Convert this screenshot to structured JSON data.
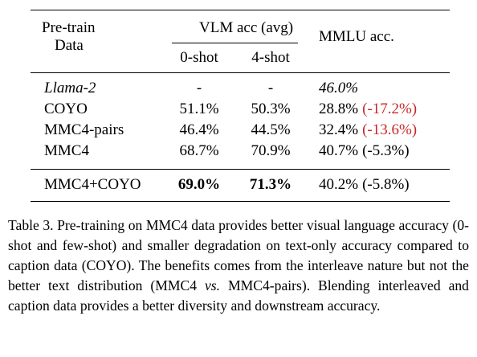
{
  "table": {
    "header": {
      "data_col": [
        "Pre-train",
        "Data"
      ],
      "vlm_group": "VLM acc (avg)",
      "zero_shot": "0-shot",
      "four_shot": "4-shot",
      "mmlu": "MMLU acc."
    },
    "rows": [
      {
        "name": "Llama-2",
        "zero_shot": "-",
        "four_shot": "-",
        "mmlu": "46.0%",
        "italic": true
      },
      {
        "name": "COYO",
        "zero_shot": "51.1%",
        "four_shot": "50.3%",
        "mmlu": "28.8%",
        "mmlu_delta": "(-17.2%)",
        "delta_color": "#c62828"
      },
      {
        "name": "MMC4-pairs",
        "zero_shot": "46.4%",
        "four_shot": "44.5%",
        "mmlu": "32.4%",
        "mmlu_delta": "(-13.6%)",
        "delta_color": "#c62828"
      },
      {
        "name": "MMC4",
        "zero_shot": "68.7%",
        "four_shot": "70.9%",
        "mmlu": "40.7%",
        "mmlu_delta": "(-5.3%)",
        "delta_color": "#000000"
      },
      {
        "name": "MMC4+COYO",
        "zero_shot": "69.0%",
        "four_shot": "71.3%",
        "mmlu": "40.2%",
        "mmlu_delta": "(-5.8%)",
        "delta_color": "#000000",
        "bold_acc": true
      }
    ]
  },
  "caption": {
    "label": "Table 3.",
    "text_before": "Pre-training on MMC4 data provides better visual language accuracy (0-shot and few-shot) and smaller degradation on text-only accuracy compared to caption data (COYO). The benefits comes from the interleave nature but not the better text distribution (MMC4 ",
    "italic": "vs.",
    "text_after": " MMC4-pairs). Blending interleaved and caption data provides a better diversity and downstream accuracy."
  }
}
